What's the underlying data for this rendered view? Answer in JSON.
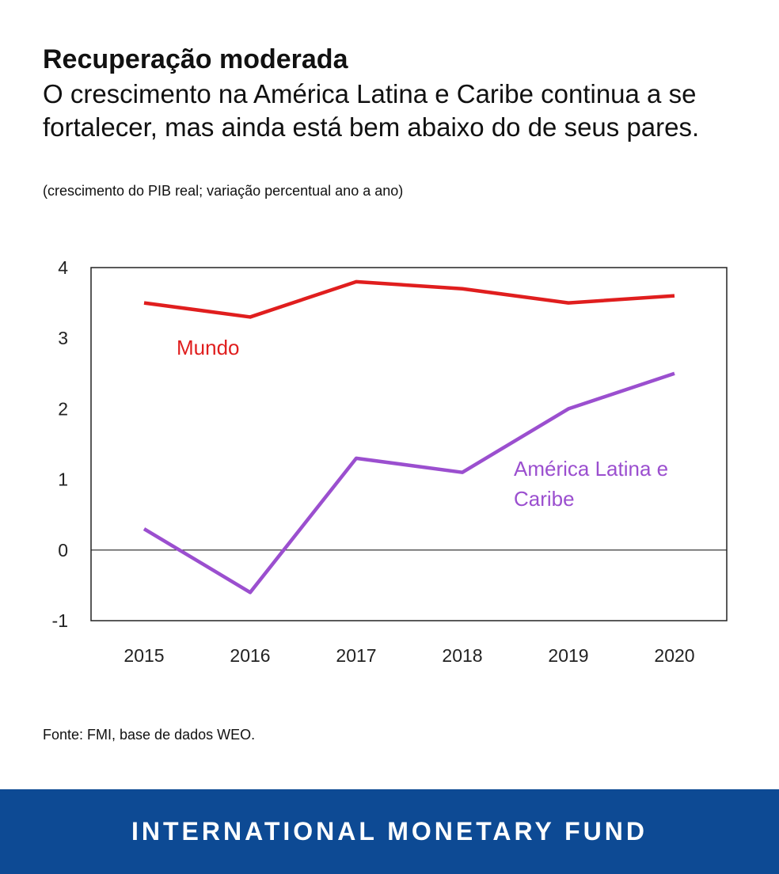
{
  "header": {
    "title": "Recuperação moderada",
    "subtitle": "O crescimento na América Latina e Caribe continua a se fortalecer, mas ainda está bem abaixo do de seus pares.",
    "units": "(crescimento do PIB real; variação percentual ano a ano)"
  },
  "source": "Fonte: FMI, base de dados WEO.",
  "footer": {
    "org": "INTERNATIONAL MONETARY FUND"
  },
  "colors": {
    "mundo": "#e01e1e",
    "lac": "#9b4fcf",
    "footer_bg": "#0d4a94"
  },
  "chart_data": {
    "type": "line",
    "x": [
      "2015",
      "2016",
      "2017",
      "2018",
      "2019",
      "2020"
    ],
    "ylim": [
      -1,
      4
    ],
    "yticks": [
      "-1",
      "0",
      "1",
      "2",
      "3",
      "4"
    ],
    "grid": false,
    "series": [
      {
        "name": "Mundo",
        "values": [
          3.5,
          3.3,
          3.8,
          3.7,
          3.5,
          3.6
        ],
        "color": "#e01e1e"
      },
      {
        "name": "América Latina e Caribe",
        "values": [
          0.3,
          -0.6,
          1.3,
          1.1,
          2.0,
          2.5
        ],
        "color": "#9b4fcf"
      }
    ],
    "labels": [
      {
        "series": 0,
        "lines": [
          "Mundo"
        ]
      },
      {
        "series": 1,
        "lines": [
          "América Latina e",
          "Caribe"
        ]
      }
    ]
  }
}
